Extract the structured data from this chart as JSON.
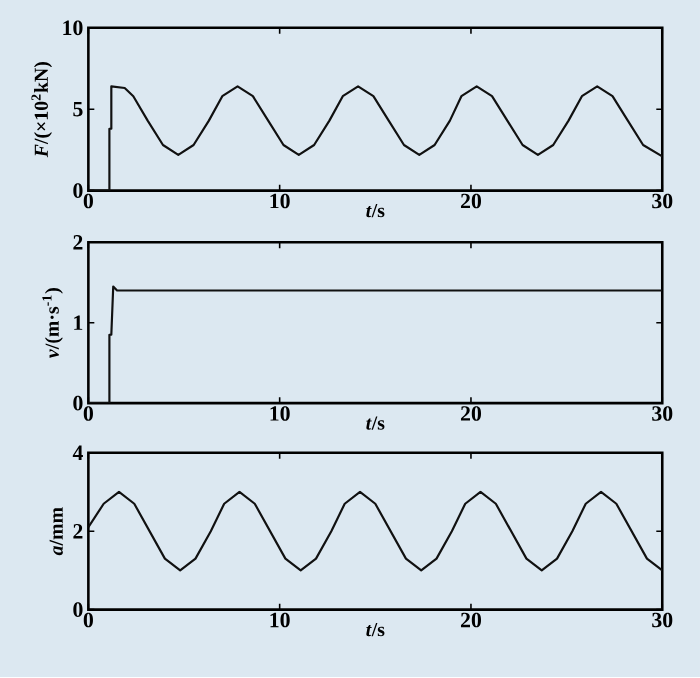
{
  "chart_data": [
    {
      "type": "line",
      "xlabel": "*t*/s",
      "ylabel": "*F*/(×10$^{2}$kN)",
      "xlim": [
        0,
        30
      ],
      "ylim": [
        0,
        10
      ],
      "xticks": [
        0,
        10,
        20,
        30
      ],
      "yticks": [
        0,
        5,
        10
      ],
      "color": "#111111",
      "x": [
        0,
        1.1,
        1.1,
        1.2,
        1.2,
        1.9,
        2.35,
        3.1,
        3.9,
        4.7,
        5.5,
        6.3,
        7.0,
        7.8,
        8.6,
        9.4,
        10.2,
        11.0,
        11.8,
        12.6,
        13.3,
        14.1,
        14.9,
        15.7,
        16.5,
        17.3,
        18.1,
        18.9,
        19.5,
        20.3,
        21.1,
        21.9,
        22.7,
        23.5,
        24.3,
        25.1,
        25.8,
        26.6,
        27.4,
        28.2,
        29.0,
        30
      ],
      "values": [
        0,
        0,
        3.8,
        3.8,
        6.4,
        6.3,
        5.8,
        4.3,
        2.8,
        2.2,
        2.8,
        4.3,
        5.8,
        6.4,
        5.8,
        4.3,
        2.8,
        2.2,
        2.8,
        4.3,
        5.8,
        6.4,
        5.8,
        4.3,
        2.8,
        2.2,
        2.8,
        4.3,
        5.8,
        6.4,
        5.8,
        4.3,
        2.8,
        2.2,
        2.8,
        4.3,
        5.8,
        6.4,
        5.8,
        4.3,
        2.8,
        2.1
      ]
    },
    {
      "type": "line",
      "xlabel": "*t*/s",
      "ylabel": "*v*/(m·s$^{-1}$)",
      "xlim": [
        0,
        30
      ],
      "ylim": [
        0,
        2
      ],
      "xticks": [
        0,
        10,
        20,
        30
      ],
      "yticks": [
        0,
        1,
        2
      ],
      "color": "#111111",
      "x": [
        0,
        1.1,
        1.1,
        1.2,
        1.3,
        1.5,
        30
      ],
      "values": [
        0,
        0,
        0.85,
        0.85,
        1.45,
        1.4,
        1.4
      ]
    },
    {
      "type": "line",
      "xlabel": "*t*/s",
      "ylabel": "*a*/mm",
      "xlim": [
        0,
        30
      ],
      "ylim": [
        0,
        4
      ],
      "xticks": [
        0,
        10,
        20,
        30
      ],
      "yticks": [
        0,
        2,
        4
      ],
      "color": "#111111",
      "x": [
        0,
        0.8,
        1.6,
        2.4,
        3.2,
        4.0,
        4.8,
        5.6,
        6.4,
        7.1,
        7.9,
        8.7,
        9.5,
        10.3,
        11.1,
        11.9,
        12.7,
        13.4,
        14.2,
        15.0,
        15.8,
        16.6,
        17.4,
        18.2,
        19.0,
        19.7,
        20.5,
        21.3,
        22.1,
        22.9,
        23.7,
        24.5,
        25.3,
        26.0,
        26.8,
        27.6,
        28.4,
        29.2,
        30
      ],
      "values": [
        2.1,
        2.7,
        3.0,
        2.7,
        2.0,
        1.3,
        1.0,
        1.3,
        2.0,
        2.7,
        3.0,
        2.7,
        2.0,
        1.3,
        1.0,
        1.3,
        2.0,
        2.7,
        3.0,
        2.7,
        2.0,
        1.3,
        1.0,
        1.3,
        2.0,
        2.7,
        3.0,
        2.7,
        2.0,
        1.3,
        1.0,
        1.3,
        2.0,
        2.7,
        3.0,
        2.7,
        2.0,
        1.3,
        1.0
      ]
    }
  ]
}
